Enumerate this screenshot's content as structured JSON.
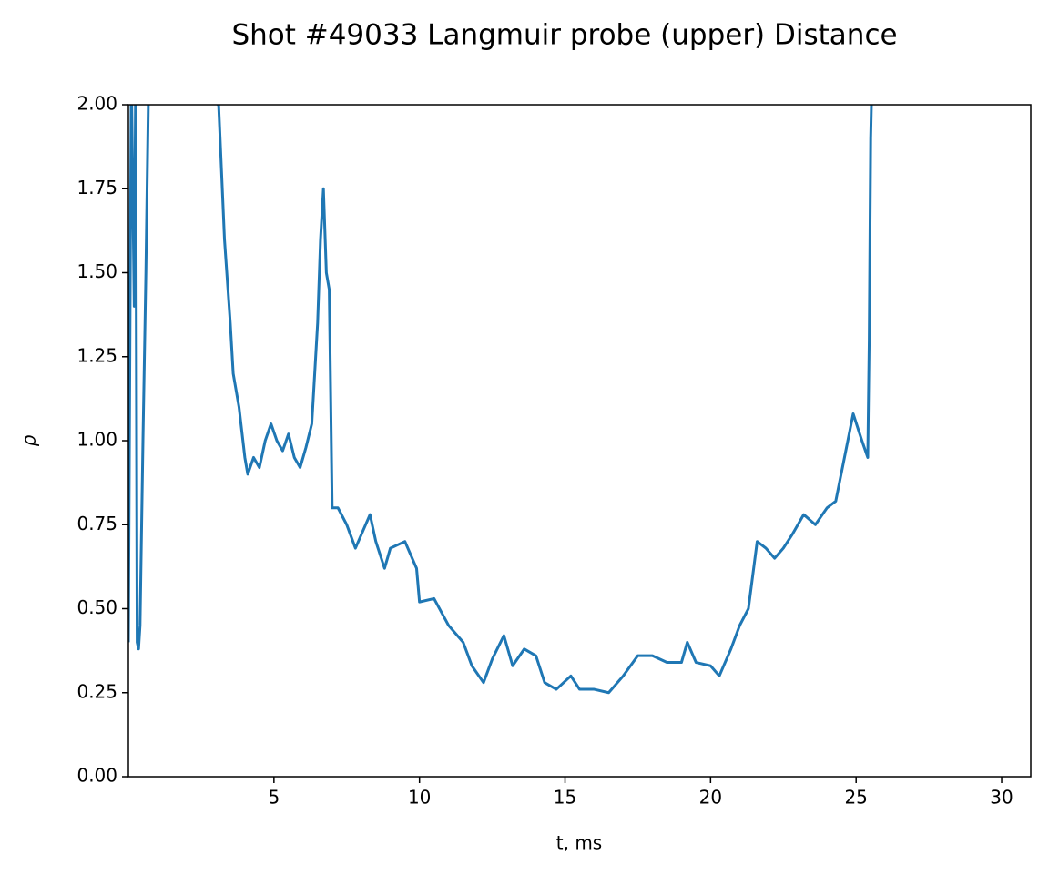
{
  "chart_data": {
    "type": "line",
    "title": "Shot #49033 Langmuir probe (upper) Distance",
    "xlabel": "t, ms",
    "ylabel": "ρ",
    "x": [
      0.0,
      0.1,
      0.2,
      0.25,
      0.3,
      0.35,
      0.4,
      0.5,
      0.6,
      0.7,
      3.1,
      3.2,
      3.3,
      3.5,
      3.6,
      3.8,
      4.0,
      4.1,
      4.3,
      4.5,
      4.7,
      4.9,
      5.1,
      5.3,
      5.5,
      5.7,
      5.9,
      6.1,
      6.3,
      6.5,
      6.6,
      6.7,
      6.8,
      6.9,
      7.0,
      7.2,
      7.5,
      7.8,
      8.0,
      8.3,
      8.5,
      8.8,
      9.0,
      9.5,
      9.9,
      10.0,
      10.5,
      11.0,
      11.5,
      11.8,
      12.2,
      12.5,
      12.9,
      13.2,
      13.6,
      14.0,
      14.3,
      14.7,
      15.2,
      15.5,
      16.0,
      16.5,
      17.0,
      17.5,
      18.0,
      18.5,
      19.0,
      19.2,
      19.5,
      20.0,
      20.3,
      20.7,
      21.0,
      21.3,
      21.6,
      21.9,
      22.2,
      22.5,
      22.8,
      23.2,
      23.6,
      24.0,
      24.3,
      24.6,
      24.9,
      25.2,
      25.4,
      25.45,
      25.5,
      25.55
    ],
    "series": [
      {
        "name": "ρ",
        "color": "#1f77b4",
        "values": [
          0.4,
          2.1,
          1.4,
          2.1,
          0.4,
          0.38,
          0.45,
          1.0,
          1.5,
          2.1,
          2.0,
          1.8,
          1.6,
          1.35,
          1.2,
          1.1,
          0.95,
          0.9,
          0.95,
          0.92,
          1.0,
          1.05,
          1.0,
          0.97,
          1.02,
          0.95,
          0.92,
          0.98,
          1.05,
          1.35,
          1.6,
          1.75,
          1.5,
          1.45,
          0.8,
          0.8,
          0.75,
          0.68,
          0.72,
          0.78,
          0.7,
          0.62,
          0.68,
          0.7,
          0.62,
          0.52,
          0.53,
          0.45,
          0.4,
          0.33,
          0.28,
          0.35,
          0.42,
          0.33,
          0.38,
          0.36,
          0.28,
          0.26,
          0.3,
          0.26,
          0.26,
          0.25,
          0.3,
          0.36,
          0.36,
          0.34,
          0.34,
          0.4,
          0.34,
          0.33,
          0.3,
          0.38,
          0.45,
          0.5,
          0.7,
          0.68,
          0.65,
          0.68,
          0.72,
          0.78,
          0.75,
          0.8,
          0.82,
          0.95,
          1.08,
          1.0,
          0.95,
          1.3,
          1.9,
          2.1
        ]
      }
    ],
    "xlim": [
      0,
      31
    ],
    "ylim": [
      0,
      2
    ],
    "xticks": [
      5,
      10,
      15,
      20,
      25,
      30
    ],
    "yticks": [
      {
        "value": 0,
        "label": "0.00"
      },
      {
        "value": 0.25,
        "label": "0.25"
      },
      {
        "value": 0.5,
        "label": "0.50"
      },
      {
        "value": 0.75,
        "label": "0.75"
      },
      {
        "value": 1,
        "label": "1.00"
      },
      {
        "value": 1.25,
        "label": "1.25"
      },
      {
        "value": 1.5,
        "label": "1.50"
      },
      {
        "value": 1.75,
        "label": "1.75"
      },
      {
        "value": 2,
        "label": "2.00"
      }
    ],
    "grid": false
  }
}
